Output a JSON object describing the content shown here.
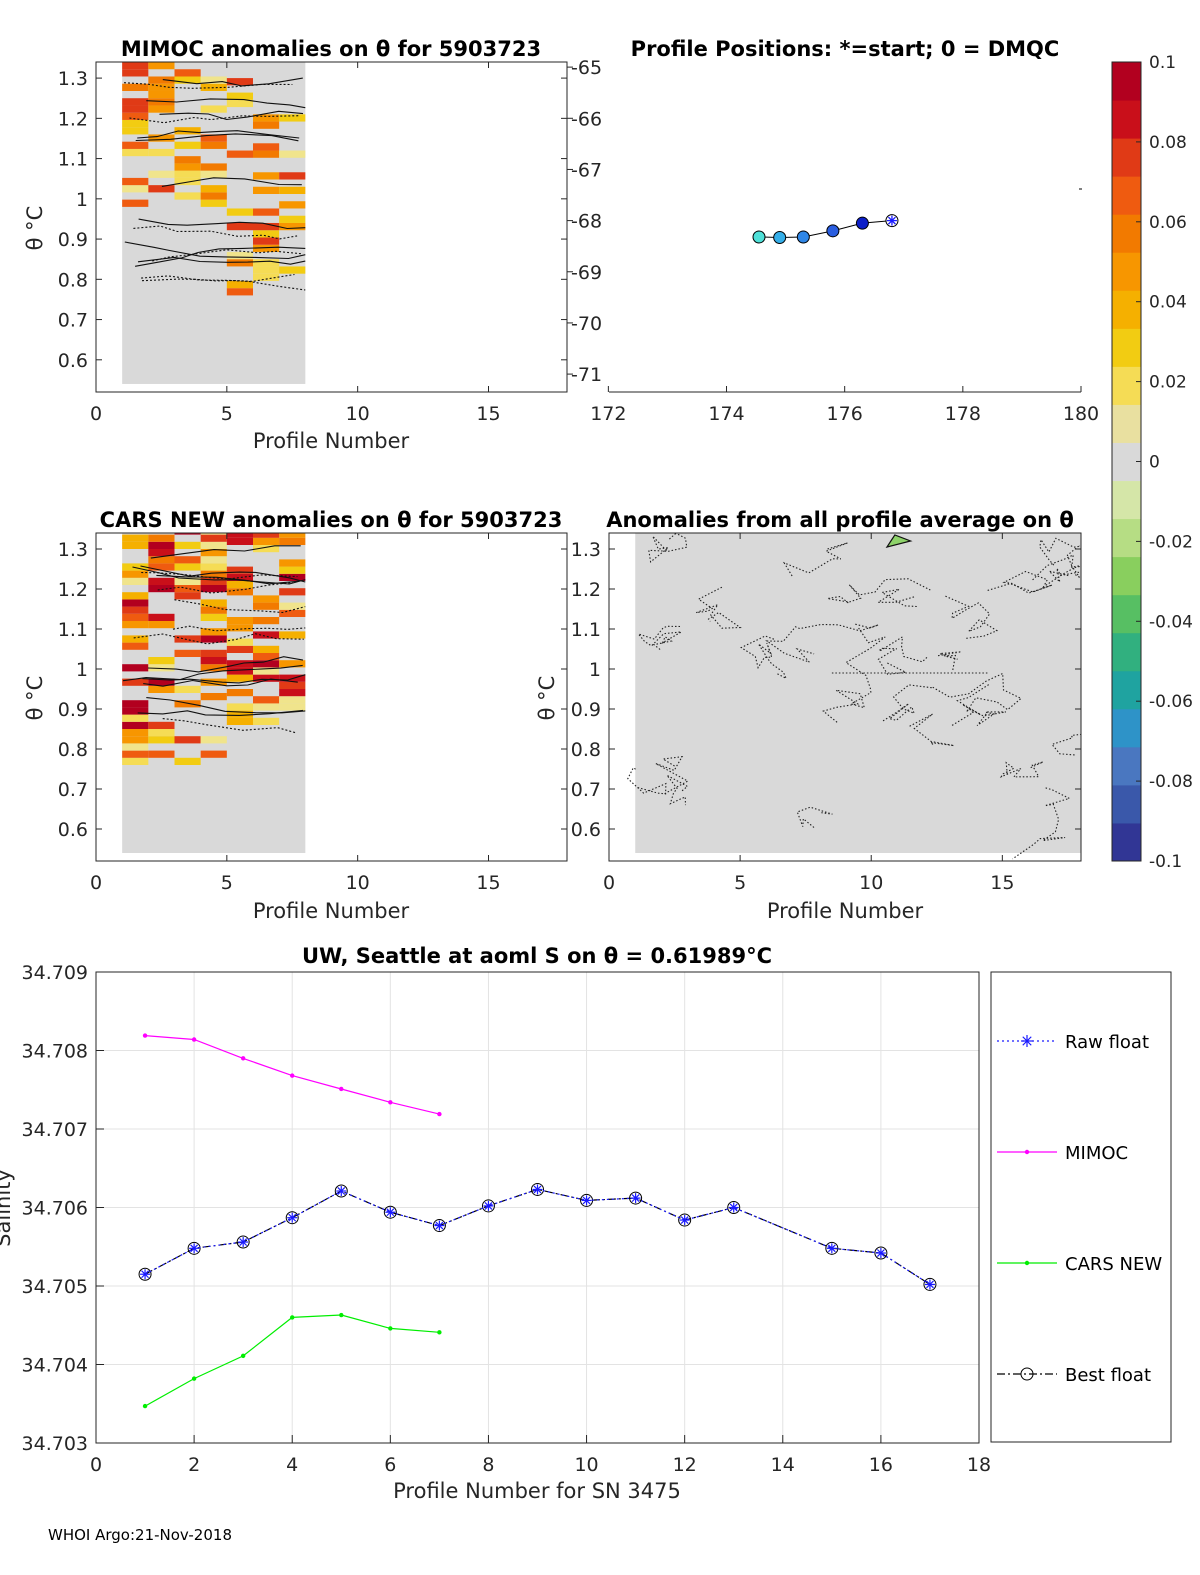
{
  "footer": "WHOI Argo:21-Nov-2018",
  "colors": {
    "mimoc": "#ff00ff",
    "cars": "#00ee00",
    "raw": "#1a1aff",
    "best": "#000000",
    "bg": "#d9d9d9"
  },
  "colorbar": {
    "min": -0.1,
    "max": 0.1,
    "ticks": [
      "0.1",
      "0.08",
      "0.06",
      "0.04",
      "0.02",
      "0",
      "-0.02",
      "-0.04",
      "-0.06",
      "-0.08",
      "-0.1"
    ],
    "colors": [
      "#313695",
      "#3a58aa",
      "#4a77c0",
      "#2e93c8",
      "#1fa3a0",
      "#31b07f",
      "#57bf63",
      "#89cf5e",
      "#b6dd84",
      "#d5e6a8",
      "#d9d9d9",
      "#e9e0a0",
      "#f5dc55",
      "#f2cc12",
      "#f5b000",
      "#f79600",
      "#f27a00",
      "#ef5b10",
      "#e03a16",
      "#c90f1a",
      "#b2001f"
    ]
  },
  "chart_data": [
    {
      "id": "mimoc",
      "type": "heatmap",
      "title": "MIMOC anomalies on θ  for 5903723",
      "xlabel": "Profile Number",
      "ylabel": "θ °C",
      "xlim": [
        0,
        18
      ],
      "ylim": [
        0.52,
        1.34
      ],
      "xticks": [
        "0",
        "5",
        "10",
        "15"
      ],
      "yticks": [
        "0.6",
        "0.7",
        "0.8",
        "0.9",
        "1",
        "1.1",
        "1.2",
        "1.3"
      ],
      "profiles": [
        1,
        2,
        3,
        4,
        5,
        6,
        7
      ]
    },
    {
      "id": "positions",
      "type": "scatter",
      "title": "Profile Positions: *=start; 0 = DMQC",
      "xlim": [
        171.3,
        180
      ],
      "ylim": [
        -71.35,
        -64.9
      ],
      "xticks": [
        "172",
        "174",
        "176",
        "178",
        "180"
      ],
      "yticks": [
        "-65",
        "-66",
        "-67",
        "-68",
        "-69",
        "-70",
        "-71"
      ],
      "lon": [
        176.8,
        176.3,
        175.8,
        175.3,
        174.9,
        174.55
      ],
      "lat": [
        -68.0,
        -68.05,
        -68.2,
        -68.32,
        -68.33,
        -68.32
      ],
      "symbols": [
        "start",
        "circle",
        "circle",
        "circle",
        "circle",
        "circle"
      ]
    },
    {
      "id": "cars",
      "type": "heatmap",
      "title": "CARS NEW anomalies on θ for 5903723",
      "xlabel": "Profile Number",
      "ylabel": "θ °C",
      "xlim": [
        0,
        18
      ],
      "ylim": [
        0.52,
        1.34
      ],
      "xticks": [
        "0",
        "5",
        "10",
        "15"
      ],
      "yticks": [
        "0.6",
        "0.7",
        "0.8",
        "0.9",
        "1",
        "1.1",
        "1.2",
        "1.3"
      ],
      "profiles": [
        1,
        2,
        3,
        4,
        5,
        6,
        7
      ]
    },
    {
      "id": "allavg",
      "type": "heatmap",
      "title": "Anomalies from all profile average on θ",
      "xlabel": "Profile Number",
      "ylabel": "θ °C",
      "xlim": [
        0,
        18
      ],
      "ylim": [
        0.52,
        1.34
      ],
      "xticks": [
        "0",
        "5",
        "10",
        "15"
      ],
      "yticks": [
        "0.6",
        "0.7",
        "0.8",
        "0.9",
        "1",
        "1.1",
        "1.2",
        "1.3"
      ],
      "profiles": [
        1,
        17
      ]
    },
    {
      "id": "salinity",
      "type": "line",
      "title": "UW, Seattle at aoml S on θ = 0.61989°C",
      "xlabel": "Profile Number for SN 3475",
      "ylabel": "Salinity",
      "xlim": [
        0,
        18
      ],
      "ylim": [
        34.703,
        34.709
      ],
      "xticks": [
        "0",
        "2",
        "4",
        "6",
        "8",
        "10",
        "12",
        "14",
        "16",
        "18"
      ],
      "yticks": [
        "34.703",
        "34.704",
        "34.705",
        "34.706",
        "34.707",
        "34.708",
        "34.709"
      ],
      "series": [
        {
          "name": "Raw float",
          "x": [
            1,
            2,
            3,
            4,
            5,
            6,
            7,
            8,
            9,
            10,
            11,
            12,
            13,
            15,
            16,
            17
          ],
          "values": [
            34.70515,
            34.70548,
            34.70556,
            34.70587,
            34.70621,
            34.70594,
            34.70577,
            34.70602,
            34.70623,
            34.70609,
            34.70612,
            34.70584,
            34.706,
            34.70548,
            34.70542,
            34.70502
          ]
        },
        {
          "name": "MIMOC",
          "x": [
            1,
            2,
            3,
            4,
            5,
            6,
            7
          ],
          "values": [
            34.70819,
            34.70814,
            34.7079,
            34.70768,
            34.70751,
            34.70734,
            34.70719
          ]
        },
        {
          "name": "CARS NEW",
          "x": [
            1,
            2,
            3,
            4,
            5,
            6,
            7
          ],
          "values": [
            34.70347,
            34.70382,
            34.70411,
            34.7046,
            34.70463,
            34.70446,
            34.70441
          ]
        },
        {
          "name": "Best float",
          "x": [
            1,
            2,
            3,
            4,
            5,
            6,
            7,
            8,
            9,
            10,
            11,
            12,
            13,
            15,
            16,
            17
          ],
          "values": [
            34.70515,
            34.70548,
            34.70556,
            34.70587,
            34.70621,
            34.70594,
            34.70577,
            34.70602,
            34.70623,
            34.70609,
            34.70612,
            34.70584,
            34.706,
            34.70548,
            34.70542,
            34.70502
          ]
        }
      ]
    }
  ]
}
